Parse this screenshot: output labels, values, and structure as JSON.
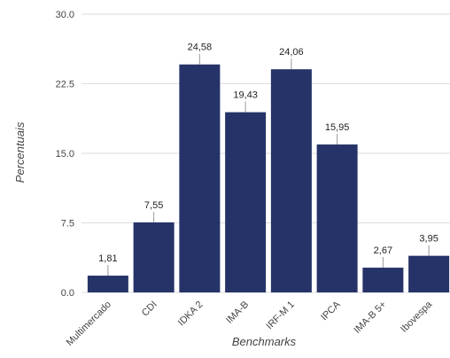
{
  "chart_data": {
    "type": "bar",
    "categories": [
      "Multimercado",
      "CDI",
      "IDKA 2",
      "IMA-B",
      "IRF-M 1",
      "IPCA",
      "IMA-B 5+",
      "Ibovespa"
    ],
    "values": [
      1.81,
      7.55,
      24.58,
      19.43,
      24.06,
      15.95,
      2.67,
      3.95
    ],
    "value_labels": [
      "1,81",
      "7,55",
      "24,58",
      "19,43",
      "24,06",
      "15,95",
      "2,67",
      "3,95"
    ],
    "yticks": [
      0,
      7.5,
      15,
      22.5,
      30
    ],
    "ytick_labels": [
      "0.0",
      "7.5",
      "15.0",
      "22.5",
      "30.0"
    ],
    "ylim": [
      0,
      30
    ],
    "xlabel": "Benchmarks",
    "ylabel": "Percentuais",
    "grid": true,
    "bar_color": "#253368",
    "grid_color": "#dddddd",
    "leader_color": "#999999"
  }
}
